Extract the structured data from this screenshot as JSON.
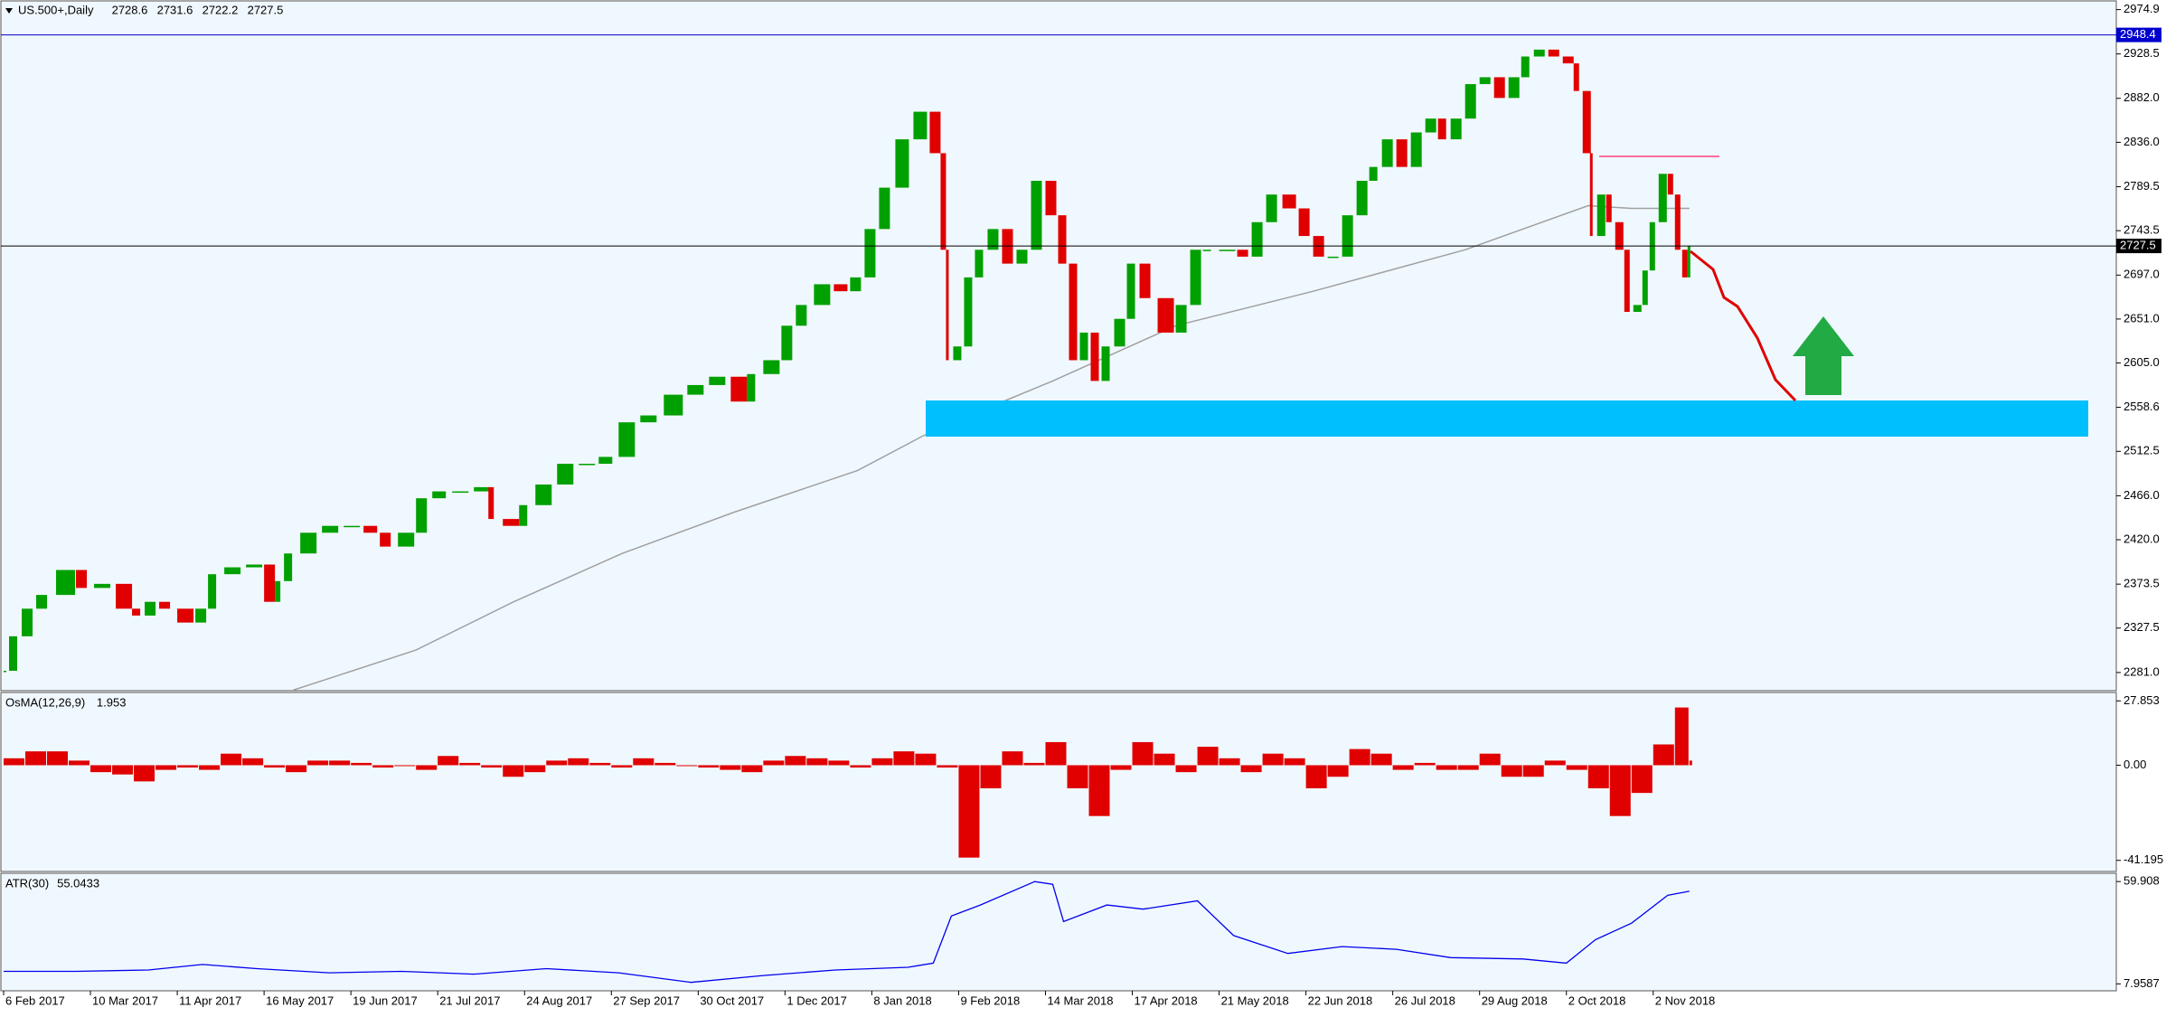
{
  "chart_data": [
    {
      "type": "candlestick",
      "symbol": "US.500+,Daily",
      "ohlc": [
        2728.6,
        2731.6,
        2722.2,
        2727.5
      ],
      "xlim": [
        -1,
        584
      ],
      "xticks": [
        {
          "value": 0,
          "label": "6 Feb 2017"
        },
        {
          "value": 24,
          "label": "10 Mar 2017"
        },
        {
          "value": 48,
          "label": "11 Apr 2017"
        },
        {
          "value": 72,
          "label": "16 May 2017"
        },
        {
          "value": 96,
          "label": "19 Jun 2017"
        },
        {
          "value": 120,
          "label": "21 Jul 2017"
        },
        {
          "value": 144,
          "label": "24 Aug 2017"
        },
        {
          "value": 168,
          "label": "27 Sep 2017"
        },
        {
          "value": 192,
          "label": "30 Oct 2017"
        },
        {
          "value": 216,
          "label": "1 Dec 2017"
        },
        {
          "value": 240,
          "label": "8 Jan 2018"
        },
        {
          "value": 264,
          "label": "9 Feb 2018"
        },
        {
          "value": 288,
          "label": "14 Mar 2018"
        },
        {
          "value": 312,
          "label": "17 Apr 2018"
        },
        {
          "value": 336,
          "label": "21 May 2018"
        },
        {
          "value": 360,
          "label": "22 Jun 2018"
        },
        {
          "value": 384,
          "label": "26 Jul 2018"
        },
        {
          "value": 408,
          "label": "29 Aug 2018"
        },
        {
          "value": 432,
          "label": "2 Oct 2018"
        },
        {
          "value": 456,
          "label": "2 Nov 2018"
        }
      ],
      "ylim": [
        2262,
        2984
      ],
      "yticks": [
        2974.9,
        2928.5,
        {
          "value": 2882.0,
          "label": "2882.0"
        },
        {
          "value": 2836.0,
          "label": "2836.0"
        },
        2789.5,
        2743.5,
        {
          "value": 2697.0,
          "label": "2697.0"
        },
        {
          "value": 2651.0,
          "label": "2651.0"
        },
        {
          "value": 2605.0,
          "label": "2605.0"
        },
        2558.6,
        2512.5,
        {
          "value": 2466.0,
          "label": "2466.0"
        },
        {
          "value": 2420.0,
          "label": "2420.0"
        },
        2373.5,
        2327.5,
        {
          "value": 2281.0,
          "label": "2281.0"
        }
      ],
      "up_color": "#00a000",
      "down_color": "#e00000",
      "x": [
        0,
        3,
        7,
        11,
        18,
        22,
        28,
        34,
        37,
        41,
        45,
        51,
        55,
        58,
        64,
        70,
        74,
        76,
        79,
        85,
        91,
        97,
        102,
        106,
        112,
        116,
        121,
        127,
        133,
        135,
        141,
        144,
        150,
        156,
        162,
        167,
        173,
        179,
        186,
        192,
        198,
        204,
        207,
        213,
        217,
        221,
        227,
        232,
        236,
        240,
        244,
        249,
        254,
        258,
        260,
        261,
        264,
        267,
        270,
        274,
        278,
        282,
        286,
        290,
        293,
        296,
        299,
        302,
        305,
        309,
        312,
        316,
        322,
        326,
        330,
        333,
        339,
        343,
        347,
        351,
        356,
        360,
        364,
        368,
        372,
        376,
        379,
        383,
        387,
        391,
        395,
        398,
        402,
        406,
        410,
        414,
        418,
        421,
        425,
        429,
        433,
        435,
        438,
        439,
        442,
        444,
        447,
        449,
        452,
        454,
        456,
        459,
        461,
        463,
        465,
        466
      ],
      "values": [
        2282.8,
        2318.9,
        2347.8,
        2362.2,
        2388.3,
        2369.5,
        2373.8,
        2347.8,
        2340.6,
        2355.0,
        2347.8,
        2333.3,
        2347.8,
        2383.9,
        2391.1,
        2394.0,
        2355.0,
        2376.7,
        2405.6,
        2427.3,
        2434.5,
        2434.5,
        2427.3,
        2412.8,
        2427.3,
        2463.4,
        2470.6,
        2470.6,
        2475.0,
        2441.7,
        2434.5,
        2456.2,
        2477.8,
        2499.5,
        2499.5,
        2506.7,
        2542.9,
        2550.1,
        2571.8,
        2581.9,
        2590.6,
        2564.6,
        2593.4,
        2607.9,
        2644.0,
        2665.7,
        2687.4,
        2680.1,
        2694.6,
        2745.2,
        2788.5,
        2839.1,
        2868.0,
        2824.6,
        2723.5,
        2607.9,
        2622.3,
        2694.6,
        2723.5,
        2745.2,
        2709.0,
        2723.5,
        2795.7,
        2759.6,
        2709.0,
        2607.9,
        2636.8,
        2586.2,
        2622.3,
        2651.2,
        2709.0,
        2672.9,
        2636.8,
        2665.7,
        2723.5,
        2723.5,
        2723.5,
        2716.3,
        2752.4,
        2781.3,
        2766.8,
        2737.9,
        2716.3,
        2716.3,
        2759.6,
        2795.7,
        2810.2,
        2839.1,
        2810.2,
        2846.3,
        2860.8,
        2839.1,
        2860.8,
        2896.9,
        2904.1,
        2882.4,
        2904.1,
        2925.8,
        2933.0,
        2925.8,
        2918.6,
        2889.7,
        2824.6,
        2737.9,
        2781.3,
        2752.4,
        2723.5,
        2658.5,
        2665.7,
        2701.8,
        2752.4,
        2803.0,
        2781.3,
        2723.5,
        2694.6,
        2727.5
      ],
      "moving_average": {
        "color": "#a0a0a0",
        "x": [
          80,
          114,
          141,
          171,
          202,
          236,
          254,
          267,
          290,
          324,
          362,
          404,
          438,
          450,
          466
        ],
        "values": [
          2262.5,
          2304.5,
          2355.0,
          2405.6,
          2448.9,
          2492.3,
          2528.4,
          2550.1,
          2586.2,
          2644.0,
          2680.1,
          2723.5,
          2769.7,
          2766.8,
          2766.8
        ]
      },
      "hlines": [
        {
          "value": 2948.4,
          "color": "#0000cc"
        },
        {
          "value": 2727.5,
          "color": "#000000"
        }
      ]
    },
    {
      "type": "histogram",
      "name": "OsMA(12,26,9)",
      "current": 1.953,
      "color": "#e00000",
      "ylim": [
        -46,
        31.5
      ],
      "yticks": [
        27.853,
        {
          "value": 0,
          "label": "0.00"
        },
        -41.195
      ],
      "x": [
        0,
        6,
        12,
        18,
        24,
        30,
        36,
        42,
        48,
        54,
        60,
        66,
        72,
        78,
        84,
        90,
        96,
        102,
        108,
        114,
        120,
        126,
        132,
        138,
        144,
        150,
        156,
        162,
        168,
        174,
        180,
        186,
        192,
        198,
        204,
        210,
        216,
        222,
        228,
        234,
        240,
        246,
        252,
        258,
        264,
        270,
        276,
        282,
        288,
        294,
        300,
        306,
        312,
        318,
        324,
        330,
        336,
        342,
        348,
        354,
        360,
        366,
        372,
        378,
        384,
        390,
        396,
        402,
        408,
        414,
        420,
        426,
        432,
        438,
        444,
        450,
        456,
        462,
        466
      ],
      "values": [
        3,
        6,
        6,
        2,
        -3,
        -4,
        -7,
        -2,
        -1,
        -2,
        5,
        3,
        -1,
        -3,
        2,
        2,
        1,
        -1,
        0,
        -2,
        4,
        1,
        -1,
        -5,
        -3,
        2,
        3,
        1,
        -1,
        3,
        1,
        0,
        -1,
        -2,
        -3,
        2,
        4,
        3,
        2,
        -1,
        3,
        6,
        5,
        -1,
        -40,
        -10,
        6,
        1,
        10,
        -10,
        -22,
        -2,
        10,
        5,
        -3,
        8,
        3,
        -3,
        5,
        3,
        -10,
        -5,
        7,
        5,
        -2,
        1,
        -2,
        -2,
        5,
        -5,
        -5,
        2,
        -2,
        -10,
        -22,
        -12,
        9,
        25,
        2
      ]
    },
    {
      "type": "line",
      "name": "ATR(30)",
      "current": 55.0433,
      "color": "#0000ee",
      "ylim": [
        4.45,
        64.12
      ],
      "yticks": [
        59.908,
        7.9587
      ],
      "x": [
        0,
        20,
        40,
        55,
        70,
        90,
        110,
        130,
        150,
        170,
        190,
        210,
        230,
        250,
        257,
        262,
        270,
        285,
        290,
        293,
        305,
        315,
        330,
        340,
        355,
        370,
        385,
        400,
        420,
        432,
        440,
        450,
        460,
        466
      ],
      "values": [
        14.3,
        14.3,
        15.0,
        17.8,
        15.7,
        13.6,
        14.3,
        12.9,
        15.7,
        13.6,
        8.7,
        12.2,
        15.0,
        16.4,
        18.5,
        42.4,
        48.0,
        59.9,
        58.5,
        39.6,
        48.0,
        45.9,
        50.1,
        32.5,
        23.4,
        26.9,
        25.5,
        21.3,
        20.6,
        18.5,
        30.4,
        38.8,
        52.9,
        55.0
      ]
    }
  ]
}
